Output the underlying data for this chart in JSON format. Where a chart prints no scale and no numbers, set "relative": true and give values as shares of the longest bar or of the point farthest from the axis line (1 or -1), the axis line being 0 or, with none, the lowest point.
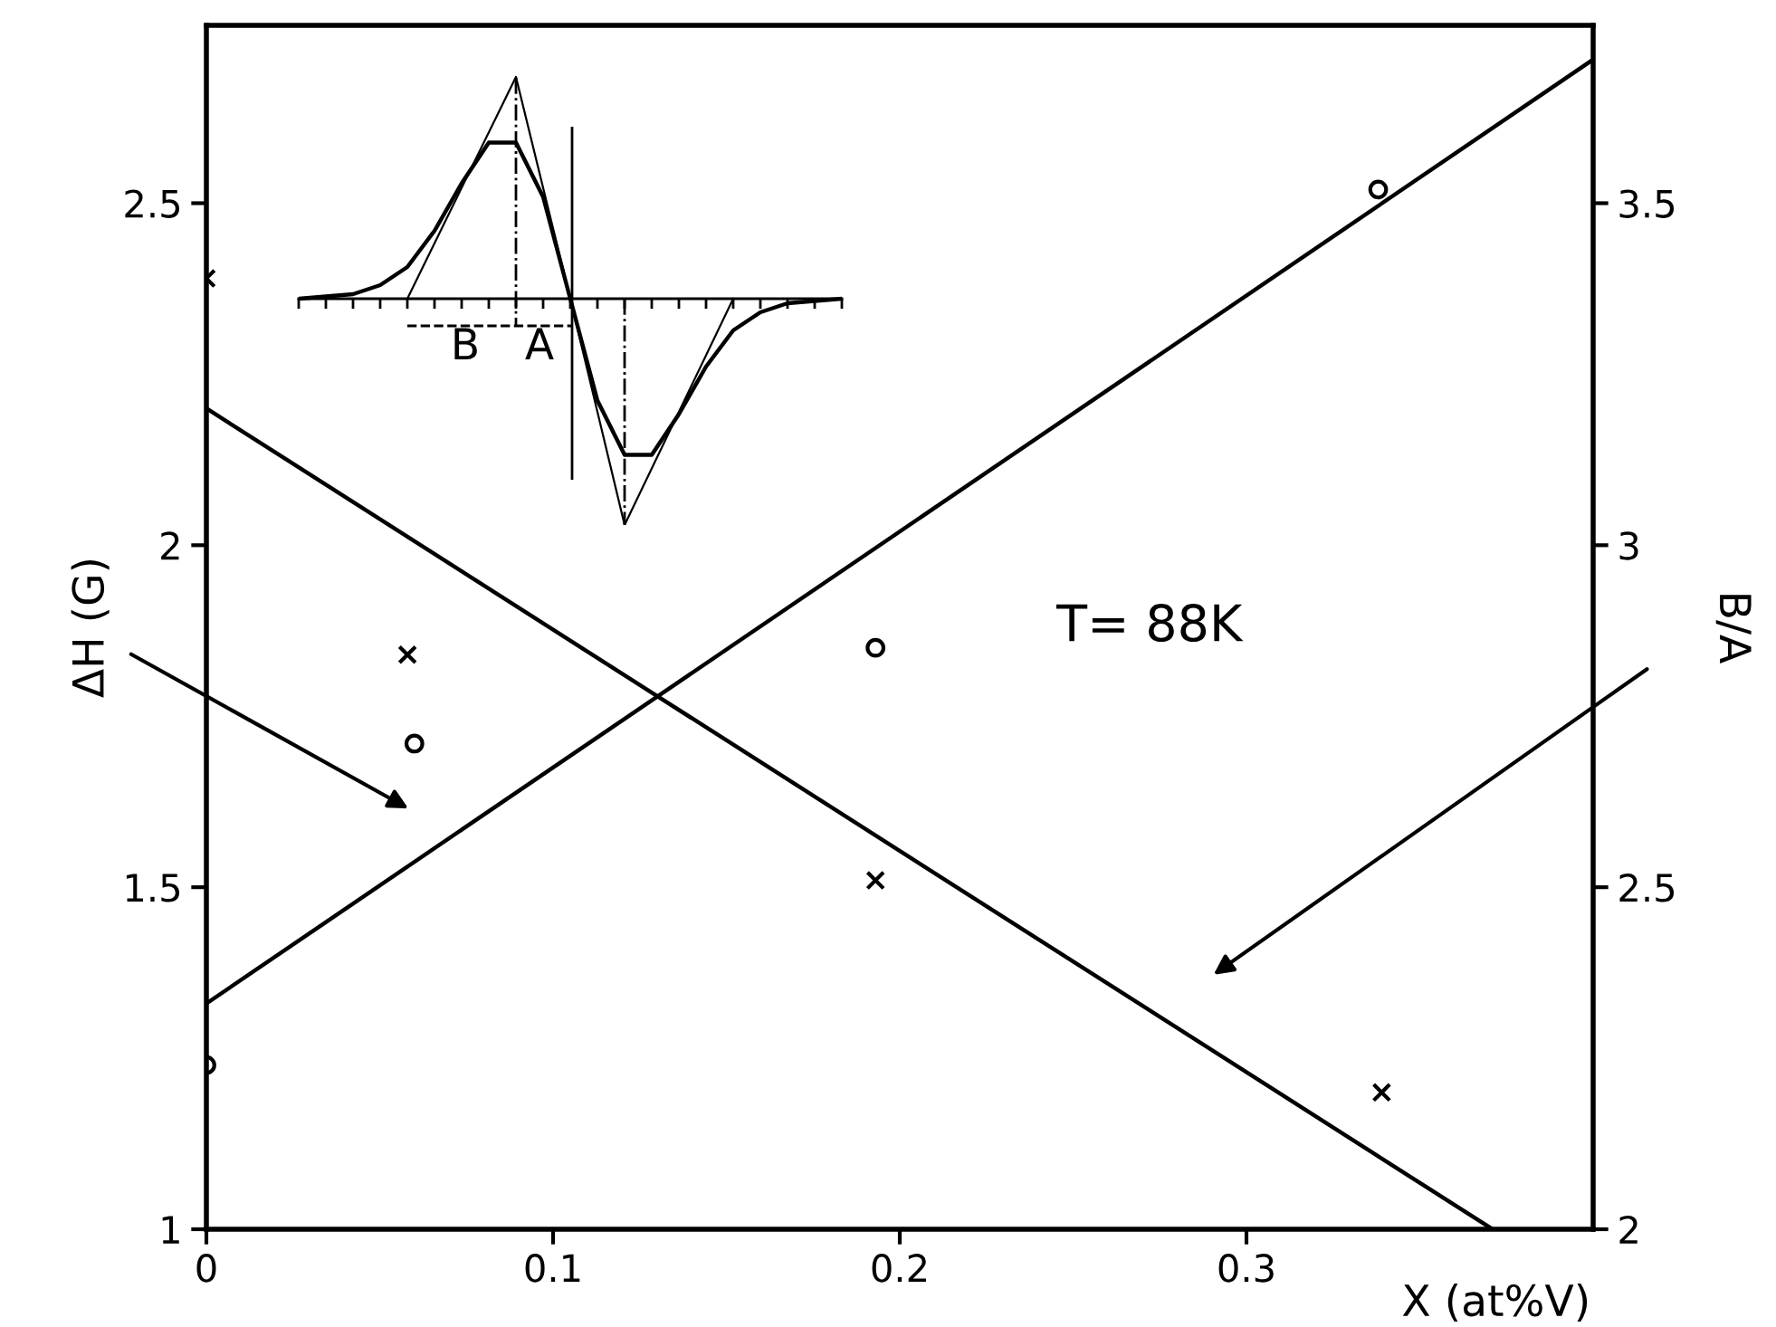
{
  "chart_data": [
    {
      "type": "scatter",
      "xlabel": "X (at%V)",
      "ylabel": "ΔH (G)",
      "y2label": "B/A",
      "annotations": [
        "T= 88K"
      ],
      "xlim": [
        0,
        0.4
      ],
      "xticks": [
        0,
        0.1,
        0.2,
        0.3
      ],
      "ylim": [
        1,
        2.76
      ],
      "yticks": [
        1,
        1.5,
        2,
        2.5
      ],
      "y2lim": [
        2,
        3.76
      ],
      "y2ticks": [
        2,
        2.5,
        3,
        3.5
      ],
      "grid": false,
      "legend": false,
      "series": [
        {
          "type": "scatter",
          "marker": "circle",
          "color": "#000000",
          "x": [
            0,
            0.06,
            0.193,
            0.338
          ],
          "values": [
            1.24,
            1.71,
            1.85,
            2.52
          ]
        },
        {
          "type": "scatter",
          "marker": "cross",
          "axis": "y2",
          "color": "#000000",
          "x": [
            0,
            0.058,
            0.193,
            0.339
          ],
          "values": [
            3.39,
            2.84,
            2.51,
            2.2
          ]
        },
        {
          "type": "line",
          "marker": "none",
          "color": "#000000",
          "x": [
            0,
            0.4
          ],
          "values": [
            1.33,
            2.71
          ]
        },
        {
          "type": "line",
          "marker": "none",
          "axis": "y2",
          "color": "#000000",
          "x": [
            0,
            0.371
          ],
          "values": [
            3.2,
            2.0
          ]
        }
      ]
    },
    {
      "type": "line",
      "relative": true,
      "annotations": [
        "B",
        "A"
      ],
      "categories": [
        null,
        null,
        null,
        null,
        null,
        null,
        null,
        null,
        null,
        null,
        null,
        null,
        null,
        null,
        null,
        null,
        null,
        null,
        null,
        null,
        null
      ],
      "series": [
        {
          "color": "#000000",
          "values": [
            0.0,
            0.01,
            0.02,
            0.06,
            0.14,
            0.3,
            0.51,
            0.69,
            0.69,
            0.45,
            0.0,
            -0.45,
            -0.69,
            -0.69,
            -0.51,
            -0.3,
            -0.14,
            -0.06,
            -0.02,
            -0.01,
            0.0
          ]
        },
        {
          "color": "#000000",
          "values": [
            null,
            null,
            null,
            null,
            0.0,
            null,
            null,
            null,
            0.98,
            null,
            0.0,
            null,
            -1.0,
            null,
            null,
            null,
            0.0,
            null,
            null,
            null,
            null
          ]
        }
      ]
    }
  ]
}
